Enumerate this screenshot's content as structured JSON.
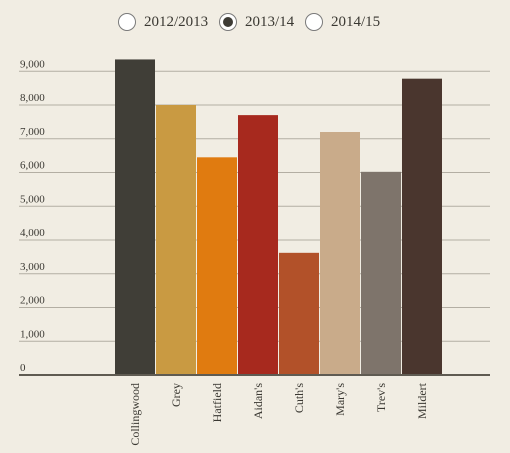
{
  "legend": {
    "options": [
      {
        "label": "2012/2013",
        "selected": false
      },
      {
        "label": "2013/14",
        "selected": true
      },
      {
        "label": "2014/15",
        "selected": false
      }
    ]
  },
  "chart_data": {
    "type": "bar",
    "title": "",
    "xlabel": "",
    "ylabel": "",
    "series_selected": "2013/14",
    "categories": [
      "Collingwood",
      "Grey",
      "Hatfield",
      "Aidan's",
      "Cuth's",
      "Mary's",
      "Trev's",
      "Mildert"
    ],
    "values": [
      9350,
      8000,
      6450,
      7700,
      3620,
      7200,
      6020,
      8780
    ],
    "colors": [
      "#403e37",
      "#c99a42",
      "#e07b10",
      "#a7291e",
      "#b25129",
      "#c9ab8a",
      "#7e746b",
      "#4a362e"
    ],
    "y_ticks": [
      0,
      1000,
      2000,
      3000,
      4000,
      5000,
      6000,
      7000,
      8000,
      9000
    ],
    "y_tick_labels": [
      "0",
      "1,000",
      "2,000",
      "3,000",
      "4,000",
      "5,000",
      "6,000",
      "7,000",
      "8,000",
      "9,000"
    ],
    "ylim": [
      0,
      10000
    ],
    "grid": true,
    "legend_position": "top"
  }
}
